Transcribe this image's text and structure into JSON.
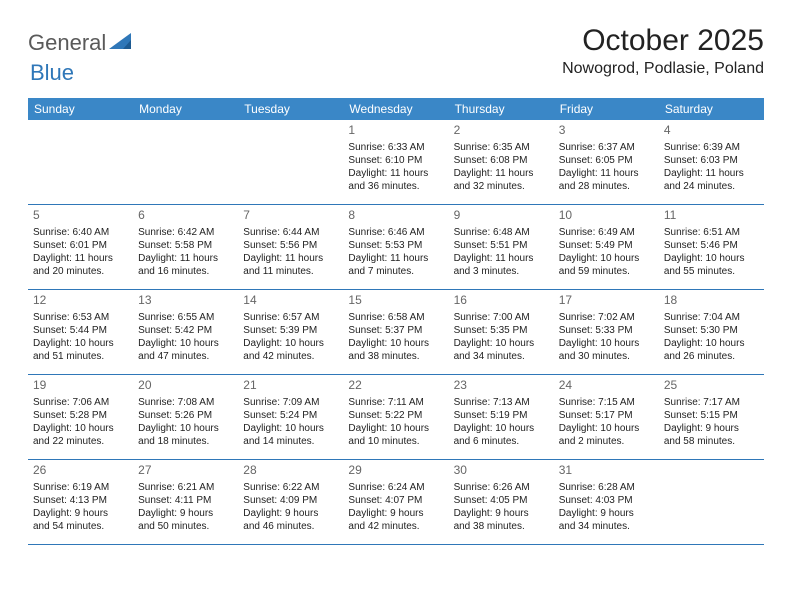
{
  "logo": {
    "text1": "General",
    "text2": "Blue",
    "text_color": "#5a5a5a",
    "accent_color": "#2f77b8"
  },
  "title": "October 2025",
  "location": "Nowogrod, Podlasie, Poland",
  "weekday_header_bg": "#3a87c7",
  "weekday_header_color": "#ffffff",
  "week_border_color": "#2f77b8",
  "day_divider_color": "#c8c8c8",
  "text_color": "#222222",
  "date_color": "#666666",
  "background_color": "#ffffff",
  "weekdays": [
    "Sunday",
    "Monday",
    "Tuesday",
    "Wednesday",
    "Thursday",
    "Friday",
    "Saturday"
  ],
  "weeks": [
    [
      {
        "empty": true
      },
      {
        "empty": true
      },
      {
        "empty": true
      },
      {
        "date": "1",
        "sunrise": "Sunrise: 6:33 AM",
        "sunset": "Sunset: 6:10 PM",
        "daylight1": "Daylight: 11 hours",
        "daylight2": "and 36 minutes."
      },
      {
        "date": "2",
        "sunrise": "Sunrise: 6:35 AM",
        "sunset": "Sunset: 6:08 PM",
        "daylight1": "Daylight: 11 hours",
        "daylight2": "and 32 minutes."
      },
      {
        "date": "3",
        "sunrise": "Sunrise: 6:37 AM",
        "sunset": "Sunset: 6:05 PM",
        "daylight1": "Daylight: 11 hours",
        "daylight2": "and 28 minutes."
      },
      {
        "date": "4",
        "sunrise": "Sunrise: 6:39 AM",
        "sunset": "Sunset: 6:03 PM",
        "daylight1": "Daylight: 11 hours",
        "daylight2": "and 24 minutes."
      }
    ],
    [
      {
        "date": "5",
        "sunrise": "Sunrise: 6:40 AM",
        "sunset": "Sunset: 6:01 PM",
        "daylight1": "Daylight: 11 hours",
        "daylight2": "and 20 minutes."
      },
      {
        "date": "6",
        "sunrise": "Sunrise: 6:42 AM",
        "sunset": "Sunset: 5:58 PM",
        "daylight1": "Daylight: 11 hours",
        "daylight2": "and 16 minutes."
      },
      {
        "date": "7",
        "sunrise": "Sunrise: 6:44 AM",
        "sunset": "Sunset: 5:56 PM",
        "daylight1": "Daylight: 11 hours",
        "daylight2": "and 11 minutes."
      },
      {
        "date": "8",
        "sunrise": "Sunrise: 6:46 AM",
        "sunset": "Sunset: 5:53 PM",
        "daylight1": "Daylight: 11 hours",
        "daylight2": "and 7 minutes."
      },
      {
        "date": "9",
        "sunrise": "Sunrise: 6:48 AM",
        "sunset": "Sunset: 5:51 PM",
        "daylight1": "Daylight: 11 hours",
        "daylight2": "and 3 minutes."
      },
      {
        "date": "10",
        "sunrise": "Sunrise: 6:49 AM",
        "sunset": "Sunset: 5:49 PM",
        "daylight1": "Daylight: 10 hours",
        "daylight2": "and 59 minutes."
      },
      {
        "date": "11",
        "sunrise": "Sunrise: 6:51 AM",
        "sunset": "Sunset: 5:46 PM",
        "daylight1": "Daylight: 10 hours",
        "daylight2": "and 55 minutes."
      }
    ],
    [
      {
        "date": "12",
        "sunrise": "Sunrise: 6:53 AM",
        "sunset": "Sunset: 5:44 PM",
        "daylight1": "Daylight: 10 hours",
        "daylight2": "and 51 minutes."
      },
      {
        "date": "13",
        "sunrise": "Sunrise: 6:55 AM",
        "sunset": "Sunset: 5:42 PM",
        "daylight1": "Daylight: 10 hours",
        "daylight2": "and 47 minutes."
      },
      {
        "date": "14",
        "sunrise": "Sunrise: 6:57 AM",
        "sunset": "Sunset: 5:39 PM",
        "daylight1": "Daylight: 10 hours",
        "daylight2": "and 42 minutes."
      },
      {
        "date": "15",
        "sunrise": "Sunrise: 6:58 AM",
        "sunset": "Sunset: 5:37 PM",
        "daylight1": "Daylight: 10 hours",
        "daylight2": "and 38 minutes."
      },
      {
        "date": "16",
        "sunrise": "Sunrise: 7:00 AM",
        "sunset": "Sunset: 5:35 PM",
        "daylight1": "Daylight: 10 hours",
        "daylight2": "and 34 minutes."
      },
      {
        "date": "17",
        "sunrise": "Sunrise: 7:02 AM",
        "sunset": "Sunset: 5:33 PM",
        "daylight1": "Daylight: 10 hours",
        "daylight2": "and 30 minutes."
      },
      {
        "date": "18",
        "sunrise": "Sunrise: 7:04 AM",
        "sunset": "Sunset: 5:30 PM",
        "daylight1": "Daylight: 10 hours",
        "daylight2": "and 26 minutes."
      }
    ],
    [
      {
        "date": "19",
        "sunrise": "Sunrise: 7:06 AM",
        "sunset": "Sunset: 5:28 PM",
        "daylight1": "Daylight: 10 hours",
        "daylight2": "and 22 minutes."
      },
      {
        "date": "20",
        "sunrise": "Sunrise: 7:08 AM",
        "sunset": "Sunset: 5:26 PM",
        "daylight1": "Daylight: 10 hours",
        "daylight2": "and 18 minutes."
      },
      {
        "date": "21",
        "sunrise": "Sunrise: 7:09 AM",
        "sunset": "Sunset: 5:24 PM",
        "daylight1": "Daylight: 10 hours",
        "daylight2": "and 14 minutes."
      },
      {
        "date": "22",
        "sunrise": "Sunrise: 7:11 AM",
        "sunset": "Sunset: 5:22 PM",
        "daylight1": "Daylight: 10 hours",
        "daylight2": "and 10 minutes."
      },
      {
        "date": "23",
        "sunrise": "Sunrise: 7:13 AM",
        "sunset": "Sunset: 5:19 PM",
        "daylight1": "Daylight: 10 hours",
        "daylight2": "and 6 minutes."
      },
      {
        "date": "24",
        "sunrise": "Sunrise: 7:15 AM",
        "sunset": "Sunset: 5:17 PM",
        "daylight1": "Daylight: 10 hours",
        "daylight2": "and 2 minutes."
      },
      {
        "date": "25",
        "sunrise": "Sunrise: 7:17 AM",
        "sunset": "Sunset: 5:15 PM",
        "daylight1": "Daylight: 9 hours",
        "daylight2": "and 58 minutes."
      }
    ],
    [
      {
        "date": "26",
        "sunrise": "Sunrise: 6:19 AM",
        "sunset": "Sunset: 4:13 PM",
        "daylight1": "Daylight: 9 hours",
        "daylight2": "and 54 minutes."
      },
      {
        "date": "27",
        "sunrise": "Sunrise: 6:21 AM",
        "sunset": "Sunset: 4:11 PM",
        "daylight1": "Daylight: 9 hours",
        "daylight2": "and 50 minutes."
      },
      {
        "date": "28",
        "sunrise": "Sunrise: 6:22 AM",
        "sunset": "Sunset: 4:09 PM",
        "daylight1": "Daylight: 9 hours",
        "daylight2": "and 46 minutes."
      },
      {
        "date": "29",
        "sunrise": "Sunrise: 6:24 AM",
        "sunset": "Sunset: 4:07 PM",
        "daylight1": "Daylight: 9 hours",
        "daylight2": "and 42 minutes."
      },
      {
        "date": "30",
        "sunrise": "Sunrise: 6:26 AM",
        "sunset": "Sunset: 4:05 PM",
        "daylight1": "Daylight: 9 hours",
        "daylight2": "and 38 minutes."
      },
      {
        "date": "31",
        "sunrise": "Sunrise: 6:28 AM",
        "sunset": "Sunset: 4:03 PM",
        "daylight1": "Daylight: 9 hours",
        "daylight2": "and 34 minutes."
      },
      {
        "empty": true
      }
    ]
  ]
}
